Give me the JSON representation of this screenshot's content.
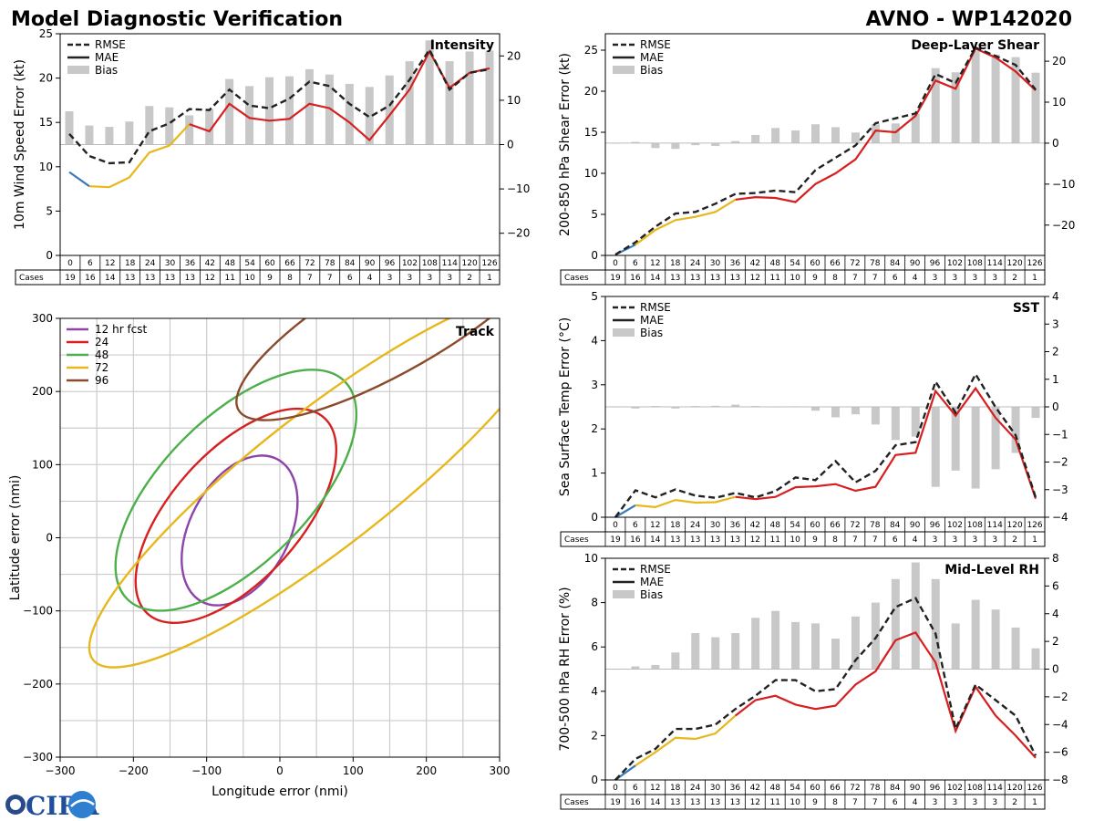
{
  "title_left": "Model Diagnostic Verification",
  "title_right": "AVNO - WP142020",
  "logo_text": "CIRA",
  "colors": {
    "rmse": "#222222",
    "bias": "#c8c8c8",
    "grid": "#cccccc",
    "seg_blue": "#3a7ab8",
    "seg_yellow": "#e6b81e",
    "seg_red": "#d62020",
    "track_12": "#8e44a8",
    "track_24": "#d62020",
    "track_48": "#4daf4a",
    "track_72": "#e6b81e",
    "track_96": "#8b4a2b"
  },
  "cases_label": "Cases",
  "hours": [
    "0",
    "6",
    "12",
    "18",
    "24",
    "30",
    "36",
    "42",
    "48",
    "54",
    "60",
    "66",
    "72",
    "78",
    "84",
    "90",
    "96",
    "102",
    "108",
    "114",
    "120",
    "126"
  ],
  "legend": {
    "rmse": "RMSE",
    "mae": "MAE",
    "bias": "Bias"
  },
  "chart_data": [
    {
      "id": "intensity",
      "type": "line+bar",
      "title": "Intensity",
      "ylabel": "10m Wind Speed Error (kt)",
      "ylim": [
        0,
        25
      ],
      "yticks": [
        "0",
        "5",
        "10",
        "15",
        "20",
        "25"
      ],
      "y2lim": [
        -25,
        25
      ],
      "y2ticks": [
        "−20",
        "−10",
        "0",
        "10",
        "20"
      ],
      "y2values": [
        -20,
        -10,
        0,
        10,
        20
      ],
      "x": [
        0,
        6,
        12,
        18,
        24,
        30,
        36,
        42,
        48,
        54,
        60,
        66,
        72,
        78,
        84,
        90,
        96,
        102,
        108,
        114,
        120,
        126
      ],
      "rmse": [
        13.7,
        11.2,
        10.4,
        10.5,
        14.0,
        14.9,
        16.5,
        16.4,
        18.7,
        16.9,
        16.6,
        17.7,
        19.6,
        19.1,
        17.1,
        15.6,
        16.9,
        19.8,
        23.2,
        18.7,
        20.6,
        21.0
      ],
      "mae": [
        9.4,
        7.8,
        7.7,
        8.8,
        11.6,
        12.4,
        14.8,
        14.0,
        17.1,
        15.5,
        15.2,
        15.4,
        17.1,
        16.6,
        15.0,
        13.0,
        15.8,
        18.7,
        23.0,
        18.9,
        20.6,
        21.1
      ],
      "bias": [
        7.5,
        4.3,
        4.0,
        5.2,
        8.7,
        8.4,
        6.6,
        8.0,
        14.8,
        13.2,
        15.2,
        15.4,
        17.0,
        15.8,
        13.7,
        13.0,
        15.6,
        18.8,
        23.5,
        18.8,
        21.0,
        21.2
      ],
      "cases": [
        "19",
        "16",
        "14",
        "13",
        "13",
        "13",
        "13",
        "12",
        "11",
        "10",
        "9",
        "8",
        "7",
        "7",
        "6",
        "4",
        "3",
        "3",
        "3",
        "3",
        "2",
        "1"
      ]
    },
    {
      "id": "shear",
      "type": "line+bar",
      "title": "Deep-Layer Shear",
      "ylabel": "200-850 hPa Shear Error (kt)",
      "ylim": [
        0,
        27
      ],
      "yticks": [
        "0",
        "5",
        "10",
        "15",
        "20",
        "25"
      ],
      "y2lim": [
        -27.4,
        26.7
      ],
      "y2ticks": [
        "−20",
        "−10",
        "0",
        "10",
        "20"
      ],
      "y2values": [
        -20,
        -10,
        0,
        10,
        20
      ],
      "x": [
        0,
        6,
        12,
        18,
        24,
        30,
        36,
        42,
        48,
        54,
        60,
        66,
        72,
        78,
        84,
        90,
        96,
        102,
        108,
        114,
        120,
        126
      ],
      "rmse": [
        0.1,
        1.6,
        3.5,
        5.1,
        5.3,
        6.3,
        7.5,
        7.6,
        7.9,
        7.7,
        10.4,
        11.9,
        13.4,
        16.1,
        16.7,
        17.3,
        22.1,
        21.0,
        25.3,
        24.3,
        23.2,
        20.2
      ],
      "mae": [
        0.1,
        1.3,
        3.1,
        4.3,
        4.7,
        5.3,
        6.8,
        7.1,
        7.0,
        6.5,
        8.7,
        10.0,
        11.7,
        15.2,
        15.0,
        17.0,
        21.3,
        20.3,
        25.2,
        24.1,
        22.4,
        20.1
      ],
      "bias": [
        0.0,
        0.3,
        -1.2,
        -1.4,
        -0.5,
        -0.7,
        0.5,
        2.0,
        3.7,
        3.1,
        4.6,
        3.9,
        2.6,
        4.6,
        4.8,
        7.2,
        18.3,
        17.3,
        22.5,
        21.6,
        21.0,
        17.2
      ],
      "cases": [
        "19",
        "16",
        "14",
        "13",
        "13",
        "13",
        "13",
        "12",
        "11",
        "10",
        "9",
        "8",
        "7",
        "7",
        "6",
        "4",
        "3",
        "3",
        "3",
        "3",
        "2",
        "1"
      ]
    },
    {
      "id": "sst",
      "type": "line+bar",
      "title": "SST",
      "ylabel": "Sea Surface Temp Error (°C)",
      "ylim": [
        0,
        5
      ],
      "yticks": [
        "0",
        "1",
        "2",
        "3",
        "4",
        "5"
      ],
      "y2lim": [
        -4,
        4
      ],
      "y2ticks": [
        "−4",
        "−3",
        "−2",
        "−1",
        "0",
        "1",
        "2",
        "3",
        "4"
      ],
      "y2values": [
        -4,
        -3,
        -2,
        -1,
        0,
        1,
        2,
        3,
        4
      ],
      "x": [
        0,
        6,
        12,
        18,
        24,
        30,
        36,
        42,
        48,
        54,
        60,
        66,
        72,
        78,
        84,
        90,
        96,
        102,
        108,
        114,
        120,
        126
      ],
      "rmse": [
        0.0,
        0.61,
        0.45,
        0.63,
        0.49,
        0.44,
        0.55,
        0.45,
        0.59,
        0.9,
        0.84,
        1.27,
        0.79,
        1.05,
        1.63,
        1.7,
        3.07,
        2.37,
        3.24,
        2.49,
        1.86,
        0.45
      ],
      "mae": [
        0.0,
        0.27,
        0.23,
        0.39,
        0.33,
        0.34,
        0.46,
        0.41,
        0.46,
        0.68,
        0.7,
        0.75,
        0.6,
        0.69,
        1.41,
        1.46,
        2.86,
        2.3,
        2.92,
        2.25,
        1.76,
        0.42
      ],
      "bias": [
        0.0,
        -0.06,
        0.03,
        -0.06,
        0.03,
        0.04,
        0.08,
        0.03,
        -0.02,
        0.02,
        -0.14,
        -0.38,
        -0.27,
        -0.64,
        -1.2,
        -1.08,
        -2.9,
        -2.31,
        -2.96,
        -2.26,
        -1.67,
        -0.4
      ],
      "cases": [
        "19",
        "16",
        "14",
        "13",
        "13",
        "13",
        "13",
        "12",
        "11",
        "10",
        "9",
        "8",
        "7",
        "7",
        "6",
        "4",
        "3",
        "3",
        "3",
        "3",
        "2",
        "1"
      ]
    },
    {
      "id": "rh",
      "type": "line+bar",
      "title": "Mid-Level RH",
      "ylabel": "700-500 hPa RH Error (%)",
      "ylim": [
        0,
        10
      ],
      "yticks": [
        "0",
        "2",
        "4",
        "6",
        "8",
        "10"
      ],
      "y2lim": [
        -8,
        8
      ],
      "y2ticks": [
        "−8",
        "−6",
        "−4",
        "−2",
        "0",
        "2",
        "4",
        "6",
        "8"
      ],
      "y2values": [
        -8,
        -6,
        -4,
        -2,
        0,
        2,
        4,
        6,
        8
      ],
      "x": [
        0,
        6,
        12,
        18,
        24,
        30,
        36,
        42,
        48,
        54,
        60,
        66,
        72,
        78,
        84,
        90,
        96,
        102,
        108,
        114,
        120,
        126
      ],
      "rmse": [
        0.0,
        0.95,
        1.4,
        2.3,
        2.3,
        2.5,
        3.2,
        3.8,
        4.5,
        4.5,
        4.0,
        4.1,
        5.4,
        6.4,
        7.8,
        8.2,
        6.6,
        2.3,
        4.3,
        3.6,
        2.9,
        1.1
      ],
      "mae": [
        0.0,
        0.65,
        1.25,
        1.9,
        1.85,
        2.1,
        2.9,
        3.6,
        3.8,
        3.4,
        3.2,
        3.35,
        4.3,
        4.9,
        6.3,
        6.65,
        5.3,
        2.2,
        4.2,
        2.9,
        2.0,
        1.0
      ],
      "bias": [
        0.0,
        0.2,
        0.3,
        1.2,
        2.6,
        2.3,
        2.6,
        3.7,
        4.2,
        3.4,
        3.3,
        2.2,
        3.8,
        4.8,
        6.5,
        7.7,
        6.5,
        3.3,
        5.0,
        4.3,
        3.0,
        1.5
      ],
      "cases": [
        "19",
        "16",
        "14",
        "13",
        "13",
        "13",
        "13",
        "12",
        "11",
        "10",
        "9",
        "8",
        "7",
        "7",
        "6",
        "4",
        "3",
        "3",
        "3",
        "3",
        "2",
        "1"
      ]
    },
    {
      "id": "track",
      "type": "ellipse",
      "title": "Track",
      "xlabel": "Longitude error (nmi)",
      "ylabel": "Latitude error (nmi)",
      "xlim": [
        -300,
        300
      ],
      "ylim": [
        -300,
        300
      ],
      "xticks": [
        "−300",
        "−200",
        "−100",
        "0",
        "100",
        "200",
        "300"
      ],
      "yticks": [
        "−300",
        "−200",
        "−100",
        "0",
        "100",
        "200",
        "300"
      ],
      "tick_values": [
        -300,
        -200,
        -100,
        0,
        100,
        200,
        300
      ],
      "ellipses": [
        {
          "label": "12 hr fcst",
          "key": "track_12",
          "cx": -55,
          "cy": 10,
          "a": 110,
          "b": 68,
          "angle": 62
        },
        {
          "label": "24",
          "key": "track_24",
          "cx": -60,
          "cy": 30,
          "a": 180,
          "b": 88,
          "angle": 48
        },
        {
          "label": "48",
          "key": "track_48",
          "cx": -60,
          "cy": 65,
          "a": 210,
          "b": 100,
          "angle": 45
        },
        {
          "label": "72",
          "key": "track_72",
          "cx": 60,
          "cy": 80,
          "a": 400,
          "b": 92,
          "angle": 38
        },
        {
          "label": "96",
          "key": "track_96",
          "cx": 160,
          "cy": 300,
          "a": 250,
          "b": 70,
          "angle": 30
        }
      ]
    }
  ]
}
